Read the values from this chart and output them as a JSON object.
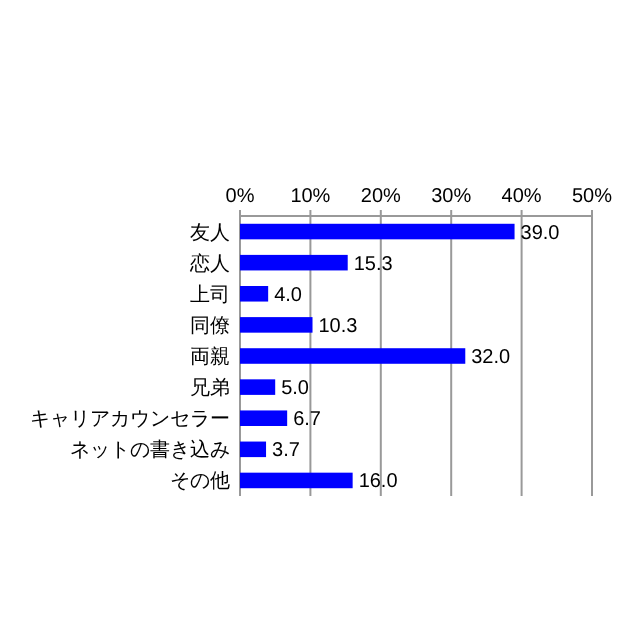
{
  "chart_data": {
    "type": "bar",
    "orientation": "horizontal",
    "categories": [
      "友人",
      "恋人",
      "上司",
      "同僚",
      "両親",
      "兄弟",
      "キャリアカウンセラー",
      "ネットの書き込み",
      "その他"
    ],
    "values": [
      39.0,
      15.3,
      4.0,
      10.3,
      32.0,
      5.0,
      6.7,
      3.7,
      16.0
    ],
    "value_labels": [
      "39.0",
      "15.3",
      "4.0",
      "10.3",
      "32.0",
      "5.0",
      "6.7",
      "3.7",
      "16.0"
    ],
    "color": "#0000ff",
    "xlim": [
      0,
      50
    ],
    "xticks": [
      {
        "value": 0,
        "label": "0%"
      },
      {
        "value": 10,
        "label": "10%"
      },
      {
        "value": 20,
        "label": "20%"
      },
      {
        "value": 30,
        "label": "30%"
      },
      {
        "value": 40,
        "label": "40%"
      },
      {
        "value": 50,
        "label": "50%"
      }
    ],
    "grid": "x"
  }
}
